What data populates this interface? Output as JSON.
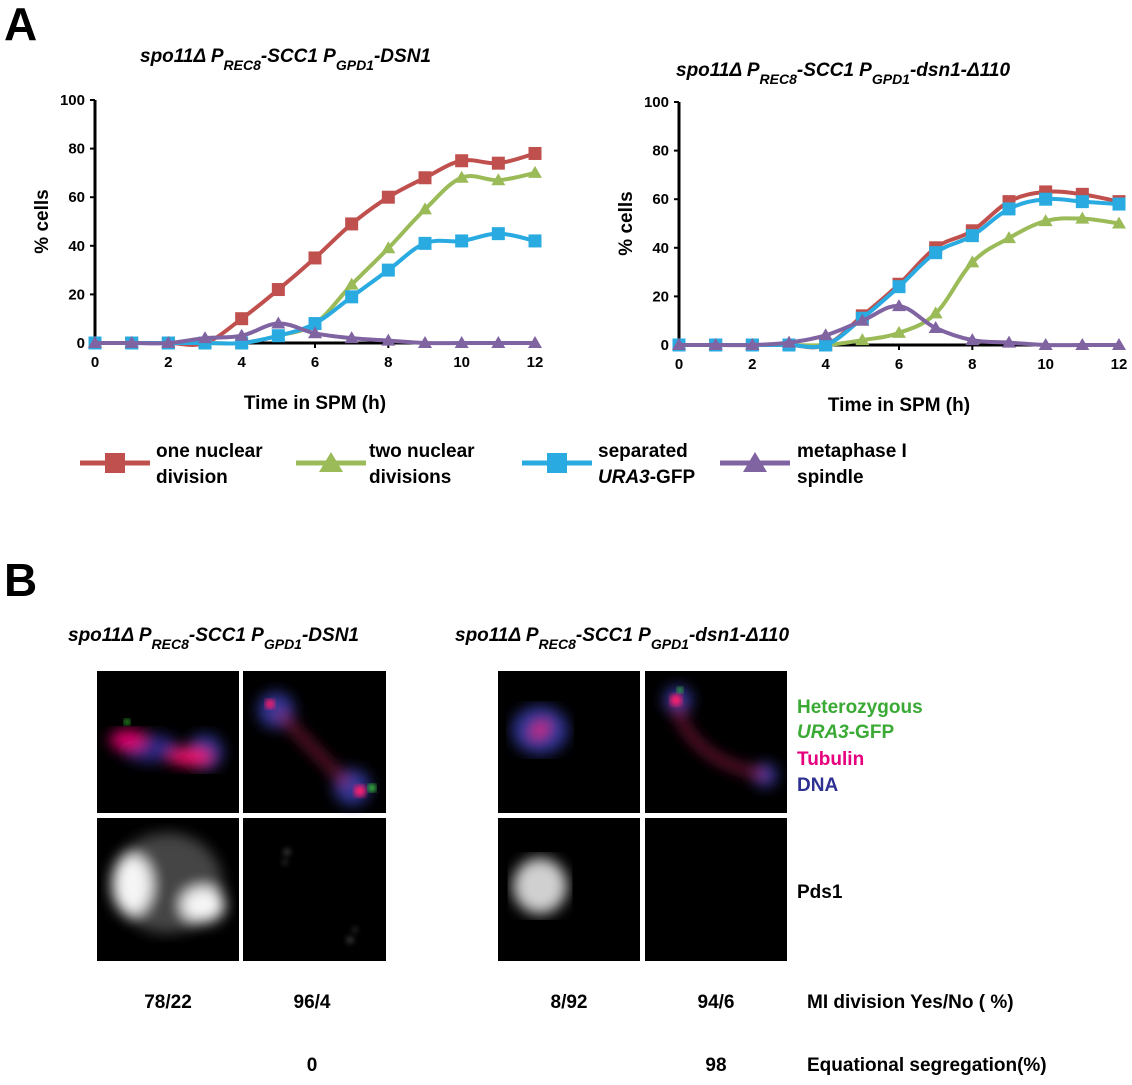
{
  "panel_a": {
    "label": "A",
    "legend": [
      {
        "line1": "one nuclear",
        "line2": "division",
        "color": "#c0504d",
        "marker": "square"
      },
      {
        "line1": "two nuclear",
        "line2": "divisions",
        "color": "#9bbb59",
        "marker": "triangle"
      },
      {
        "line1": "separated",
        "line2_italic": "URA3",
        "line2": "-GFP",
        "color": "#29abe2",
        "marker": "square"
      },
      {
        "line1": "metaphase I",
        "line2": "spindle",
        "color": "#8064a2",
        "marker": "triangle"
      }
    ]
  },
  "chart_data": [
    {
      "type": "line",
      "title": {
        "a": "spo11Δ  P",
        "b": "REC8",
        "c": "-SCC1  P",
        "d": "GPD1",
        "e": "-DSN1"
      },
      "xlabel": "Time in SPM (h)",
      "ylabel": "% cells",
      "xlim": [
        0,
        12
      ],
      "ylim": [
        0,
        100
      ],
      "xticks": [
        "0",
        "2",
        "4",
        "6",
        "8",
        "10",
        "12"
      ],
      "yticks": [
        "0",
        "20",
        "40",
        "60",
        "80",
        "100"
      ],
      "x": [
        0,
        1,
        2,
        3,
        4,
        5,
        6,
        7,
        8,
        9,
        10,
        11,
        12
      ],
      "series": [
        {
          "name": "one nuclear division",
          "color": "#c0504d",
          "marker": "square",
          "values": [
            0,
            0,
            0,
            0,
            10,
            22,
            35,
            49,
            60,
            68,
            75,
            74,
            78
          ]
        },
        {
          "name": "two nuclear divisions",
          "color": "#9bbb59",
          "marker": "triangle",
          "values": [
            0,
            0,
            0,
            0,
            0,
            3,
            8,
            24,
            39,
            55,
            68,
            67,
            70
          ]
        },
        {
          "name": "separated URA3-GFP",
          "color": "#29abe2",
          "marker": "square",
          "values": [
            0,
            0,
            0,
            0,
            0,
            3,
            8,
            19,
            30,
            41,
            42,
            45,
            42
          ]
        },
        {
          "name": "metaphase I spindle",
          "color": "#8064a2",
          "marker": "triangle",
          "values": [
            0,
            0,
            0,
            2,
            3,
            8,
            4,
            2,
            1,
            0,
            0,
            0,
            0
          ]
        }
      ]
    },
    {
      "type": "line",
      "title": {
        "a": "spo11Δ  P",
        "b": "REC8",
        "c": "-SCC1  P",
        "d": "GPD1",
        "e": "-dsn1-Δ110"
      },
      "xlabel": "Time in SPM (h)",
      "ylabel": "% cells",
      "xlim": [
        0,
        12
      ],
      "ylim": [
        0,
        100
      ],
      "xticks": [
        "0",
        "2",
        "4",
        "6",
        "8",
        "10",
        "12"
      ],
      "yticks": [
        "0",
        "20",
        "40",
        "60",
        "80",
        "100"
      ],
      "x": [
        0,
        1,
        2,
        3,
        4,
        5,
        6,
        7,
        8,
        9,
        10,
        11,
        12
      ],
      "series": [
        {
          "name": "one nuclear division",
          "color": "#c0504d",
          "marker": "square",
          "values": [
            0,
            0,
            0,
            0,
            0,
            12,
            25,
            40,
            47,
            59,
            63,
            62,
            59
          ]
        },
        {
          "name": "two nuclear divisions",
          "color": "#9bbb59",
          "marker": "triangle",
          "values": [
            0,
            0,
            0,
            0,
            0,
            2,
            5,
            13,
            34,
            44,
            51,
            52,
            50
          ]
        },
        {
          "name": "separated URA3-GFP",
          "color": "#29abe2",
          "marker": "square",
          "values": [
            0,
            0,
            0,
            0,
            0,
            11,
            24,
            38,
            45,
            56,
            60,
            59,
            58
          ]
        },
        {
          "name": "metaphase I spindle",
          "color": "#8064a2",
          "marker": "triangle",
          "values": [
            0,
            0,
            0,
            1,
            4,
            10,
            16,
            7,
            2,
            1,
            0,
            0,
            0
          ]
        }
      ]
    }
  ],
  "panel_b": {
    "label": "B",
    "left_title": {
      "a": "spo11Δ P",
      "b": "REC8",
      "c": "-SCC1 P",
      "d": "GPD1",
      "e": "-DSN1"
    },
    "right_title": {
      "a": "spo11Δ P",
      "b": "REC8",
      "c": "-SCC1 P",
      "d": "GPD1",
      "e": "-dsn1-Δ110"
    },
    "channel_labels": {
      "heterozygous": "Heterozygous",
      "ura3_italic": "URA3",
      "gfp": "-GFP",
      "tubulin": "Tubulin",
      "dna": "DNA",
      "pds1": "Pds1"
    },
    "colors": {
      "green": "#3aaa35",
      "magenta": "#e6007e",
      "blue": "#2e3192"
    },
    "mi_division": {
      "label": "MI division Yes/No ( %)",
      "values": [
        "78/22",
        "96/4",
        "8/92",
        "94/6"
      ]
    },
    "equational": {
      "label": "Equational segregation(%)",
      "values": [
        "0",
        "98"
      ]
    }
  }
}
